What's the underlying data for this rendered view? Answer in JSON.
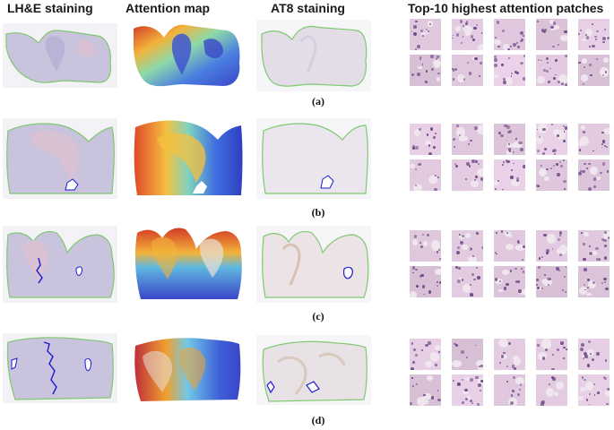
{
  "headers": {
    "lhe": "LH&E staining",
    "attention": "Attention map",
    "at8": "AT8 staining",
    "patches": "Top-10 highest attention patches"
  },
  "rows": [
    {
      "label": "(a)"
    },
    {
      "label": "(b)"
    },
    {
      "label": "(c)"
    },
    {
      "label": "(d)"
    }
  ],
  "colors": {
    "lhe_tissue": "#c9c3dd",
    "lhe_pink": "#d8c1d2",
    "lhe_outline": "#7ec96f",
    "attention_low": "#4a5fd6",
    "attention_high": "#d43a26",
    "at8_tissue": "#e3dde8",
    "annotation": "#1a1ad0",
    "patch_bg": "#d9c6d8",
    "nuclei": "#6d4a86"
  }
}
